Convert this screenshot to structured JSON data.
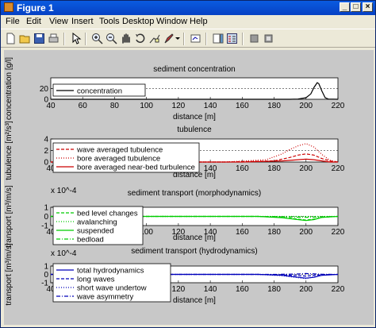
{
  "window": {
    "title": "Figure 1"
  },
  "titlebar_buttons": [
    "_",
    "□",
    "×"
  ],
  "menu": [
    {
      "label": "File"
    },
    {
      "label": "Edit"
    },
    {
      "label": "View"
    },
    {
      "label": "Insert"
    },
    {
      "label": "Tools"
    },
    {
      "label": "Desktop"
    },
    {
      "label": "Window"
    },
    {
      "label": "Help"
    }
  ],
  "toolbar_icons": [
    "new-figure-icon",
    "open-icon",
    "save-icon",
    "print-icon",
    "select-arrow-icon",
    "zoom-in-icon",
    "zoom-out-icon",
    "pan-hand-icon",
    "rotate-3d-icon",
    "data-cursor-icon",
    "brush-icon",
    "brush-dropdown-icon",
    "link-plot-icon",
    "colorbar-icon",
    "legend-icon",
    "hide-plot-tools-icon",
    "show-plot-tools-icon"
  ],
  "chart_data": [
    {
      "type": "line",
      "title": "sediment concentration",
      "xlabel": "distance [m]",
      "ylabel": "concentration [g/l]",
      "xlim": [
        40,
        220
      ],
      "ylim": [
        0,
        40
      ],
      "xticks": [
        "40",
        "60",
        "80",
        "100",
        "120",
        "140",
        "160",
        "180",
        "200",
        "220"
      ],
      "yticks": [
        "0",
        "20"
      ],
      "grid_y": [
        20
      ],
      "legend": {
        "location": "top-left"
      },
      "series": [
        {
          "name": "concentration",
          "color": "#000000",
          "style": "solid",
          "x": [
            40,
            100,
            190,
            195,
            200,
            203,
            205,
            207,
            208,
            210,
            212,
            214,
            220
          ],
          "y": [
            0,
            0,
            0,
            0.5,
            3,
            10,
            22,
            31,
            29,
            15,
            3,
            0.5,
            0
          ]
        }
      ]
    },
    {
      "type": "line",
      "title": "tubulence",
      "xlabel": "distance [m]",
      "ylabel": "tubulence [m²/s³]",
      "xlim": [
        40,
        220
      ],
      "ylim": [
        0,
        4
      ],
      "xticks": [
        "40",
        "60",
        "80",
        "100",
        "120",
        "140",
        "160",
        "180",
        "200",
        "220"
      ],
      "yticks": [
        "0",
        "2",
        "4"
      ],
      "grid_y": [
        2
      ],
      "legend": {
        "location": "top-left"
      },
      "series": [
        {
          "name": "wave averaged tubulence",
          "color": "#cc0000",
          "style": "dashed",
          "x": [
            40,
            150,
            180,
            190,
            195,
            200,
            205,
            210,
            215,
            220
          ],
          "y": [
            0,
            0,
            0.2,
            0.8,
            1.2,
            1.4,
            1.2,
            0.6,
            0.2,
            0
          ]
        },
        {
          "name": "bore averaged tubulence",
          "color": "#cc0000",
          "style": "dotted",
          "x": [
            40,
            150,
            175,
            185,
            190,
            195,
            200,
            205,
            210,
            215,
            220
          ],
          "y": [
            0,
            0,
            0.4,
            1.4,
            2.2,
            2.8,
            3.2,
            2.6,
            1.3,
            0.3,
            0
          ]
        },
        {
          "name": "bore averaged near-bed turbulence",
          "color": "#cc0000",
          "style": "solid",
          "x": [
            40,
            160,
            185,
            195,
            200,
            205,
            210,
            215,
            220
          ],
          "y": [
            0,
            0,
            0.2,
            0.4,
            0.5,
            0.4,
            0.2,
            0,
            0
          ]
        }
      ]
    },
    {
      "type": "line",
      "title": "sediment transport (morphodynamics)",
      "xlabel": "distance [m]",
      "ylabel": "transport [m³/m/s]",
      "y_multiplier": "x 10^-4",
      "xlim": [
        40,
        220
      ],
      "ylim": [
        -1,
        1
      ],
      "xticks": [
        "40",
        "60",
        "80",
        "100",
        "120",
        "140",
        "160",
        "180",
        "200",
        "220"
      ],
      "yticks": [
        "-1",
        "0",
        "1"
      ],
      "grid_y": [
        0
      ],
      "legend": {
        "location": "top-left"
      },
      "series": [
        {
          "name": "bed level changes",
          "color": "#00cc00",
          "style": "dashed",
          "x": [
            40,
            170,
            185,
            195,
            200,
            205,
            210,
            220
          ],
          "y": [
            0,
            0,
            -0.1,
            -0.3,
            -0.4,
            -0.3,
            -0.1,
            0
          ]
        },
        {
          "name": "avalanching",
          "color": "#00cc00",
          "style": "dotted",
          "x": [
            40,
            220
          ],
          "y": [
            0,
            0
          ]
        },
        {
          "name": "suspended",
          "color": "#00cc00",
          "style": "solid",
          "x": [
            40,
            170,
            185,
            195,
            200,
            205,
            210,
            220
          ],
          "y": [
            0,
            0,
            -0.15,
            -0.35,
            -0.45,
            -0.35,
            -0.1,
            0
          ]
        },
        {
          "name": "bedload",
          "color": "#00cc00",
          "style": "dash-dot",
          "x": [
            40,
            170,
            190,
            200,
            210,
            220
          ],
          "y": [
            0,
            0,
            -0.05,
            -0.1,
            -0.05,
            0
          ]
        }
      ]
    },
    {
      "type": "line",
      "title": "sediment transport (hydrodynamics)",
      "xlabel": "distance [m]",
      "ylabel": "transport [m³/m/s]",
      "y_multiplier": "x 10^-4",
      "xlim": [
        40,
        220
      ],
      "ylim": [
        -1,
        1
      ],
      "xticks": [
        "40",
        "60",
        "80",
        "100",
        "120",
        "140",
        "160",
        "180",
        "200",
        "220"
      ],
      "yticks": [
        "-1",
        "0",
        "1"
      ],
      "grid_y": [
        0
      ],
      "legend": {
        "location": "top-left"
      },
      "series": [
        {
          "name": "total hydrodynamics",
          "color": "#0000bb",
          "style": "solid",
          "x": [
            40,
            170,
            185,
            195,
            200,
            205,
            210,
            220
          ],
          "y": [
            0,
            0,
            -0.1,
            -0.35,
            -0.45,
            -0.35,
            -0.1,
            0
          ]
        },
        {
          "name": "long waves",
          "color": "#0000bb",
          "style": "dashed",
          "x": [
            40,
            170,
            190,
            200,
            210,
            220
          ],
          "y": [
            0,
            0,
            -0.1,
            -0.2,
            -0.05,
            0
          ]
        },
        {
          "name": "short wave undertow",
          "color": "#0000bb",
          "style": "dotted",
          "x": [
            40,
            170,
            185,
            195,
            200,
            205,
            210,
            220
          ],
          "y": [
            0,
            0,
            -0.15,
            -0.4,
            -0.5,
            -0.3,
            -0.1,
            0
          ]
        },
        {
          "name": "wave asymmetry",
          "color": "#0000bb",
          "style": "dash-dot",
          "x": [
            40,
            180,
            195,
            200,
            210,
            220
          ],
          "y": [
            0,
            0,
            0.05,
            0.1,
            0.02,
            0
          ]
        }
      ]
    }
  ]
}
